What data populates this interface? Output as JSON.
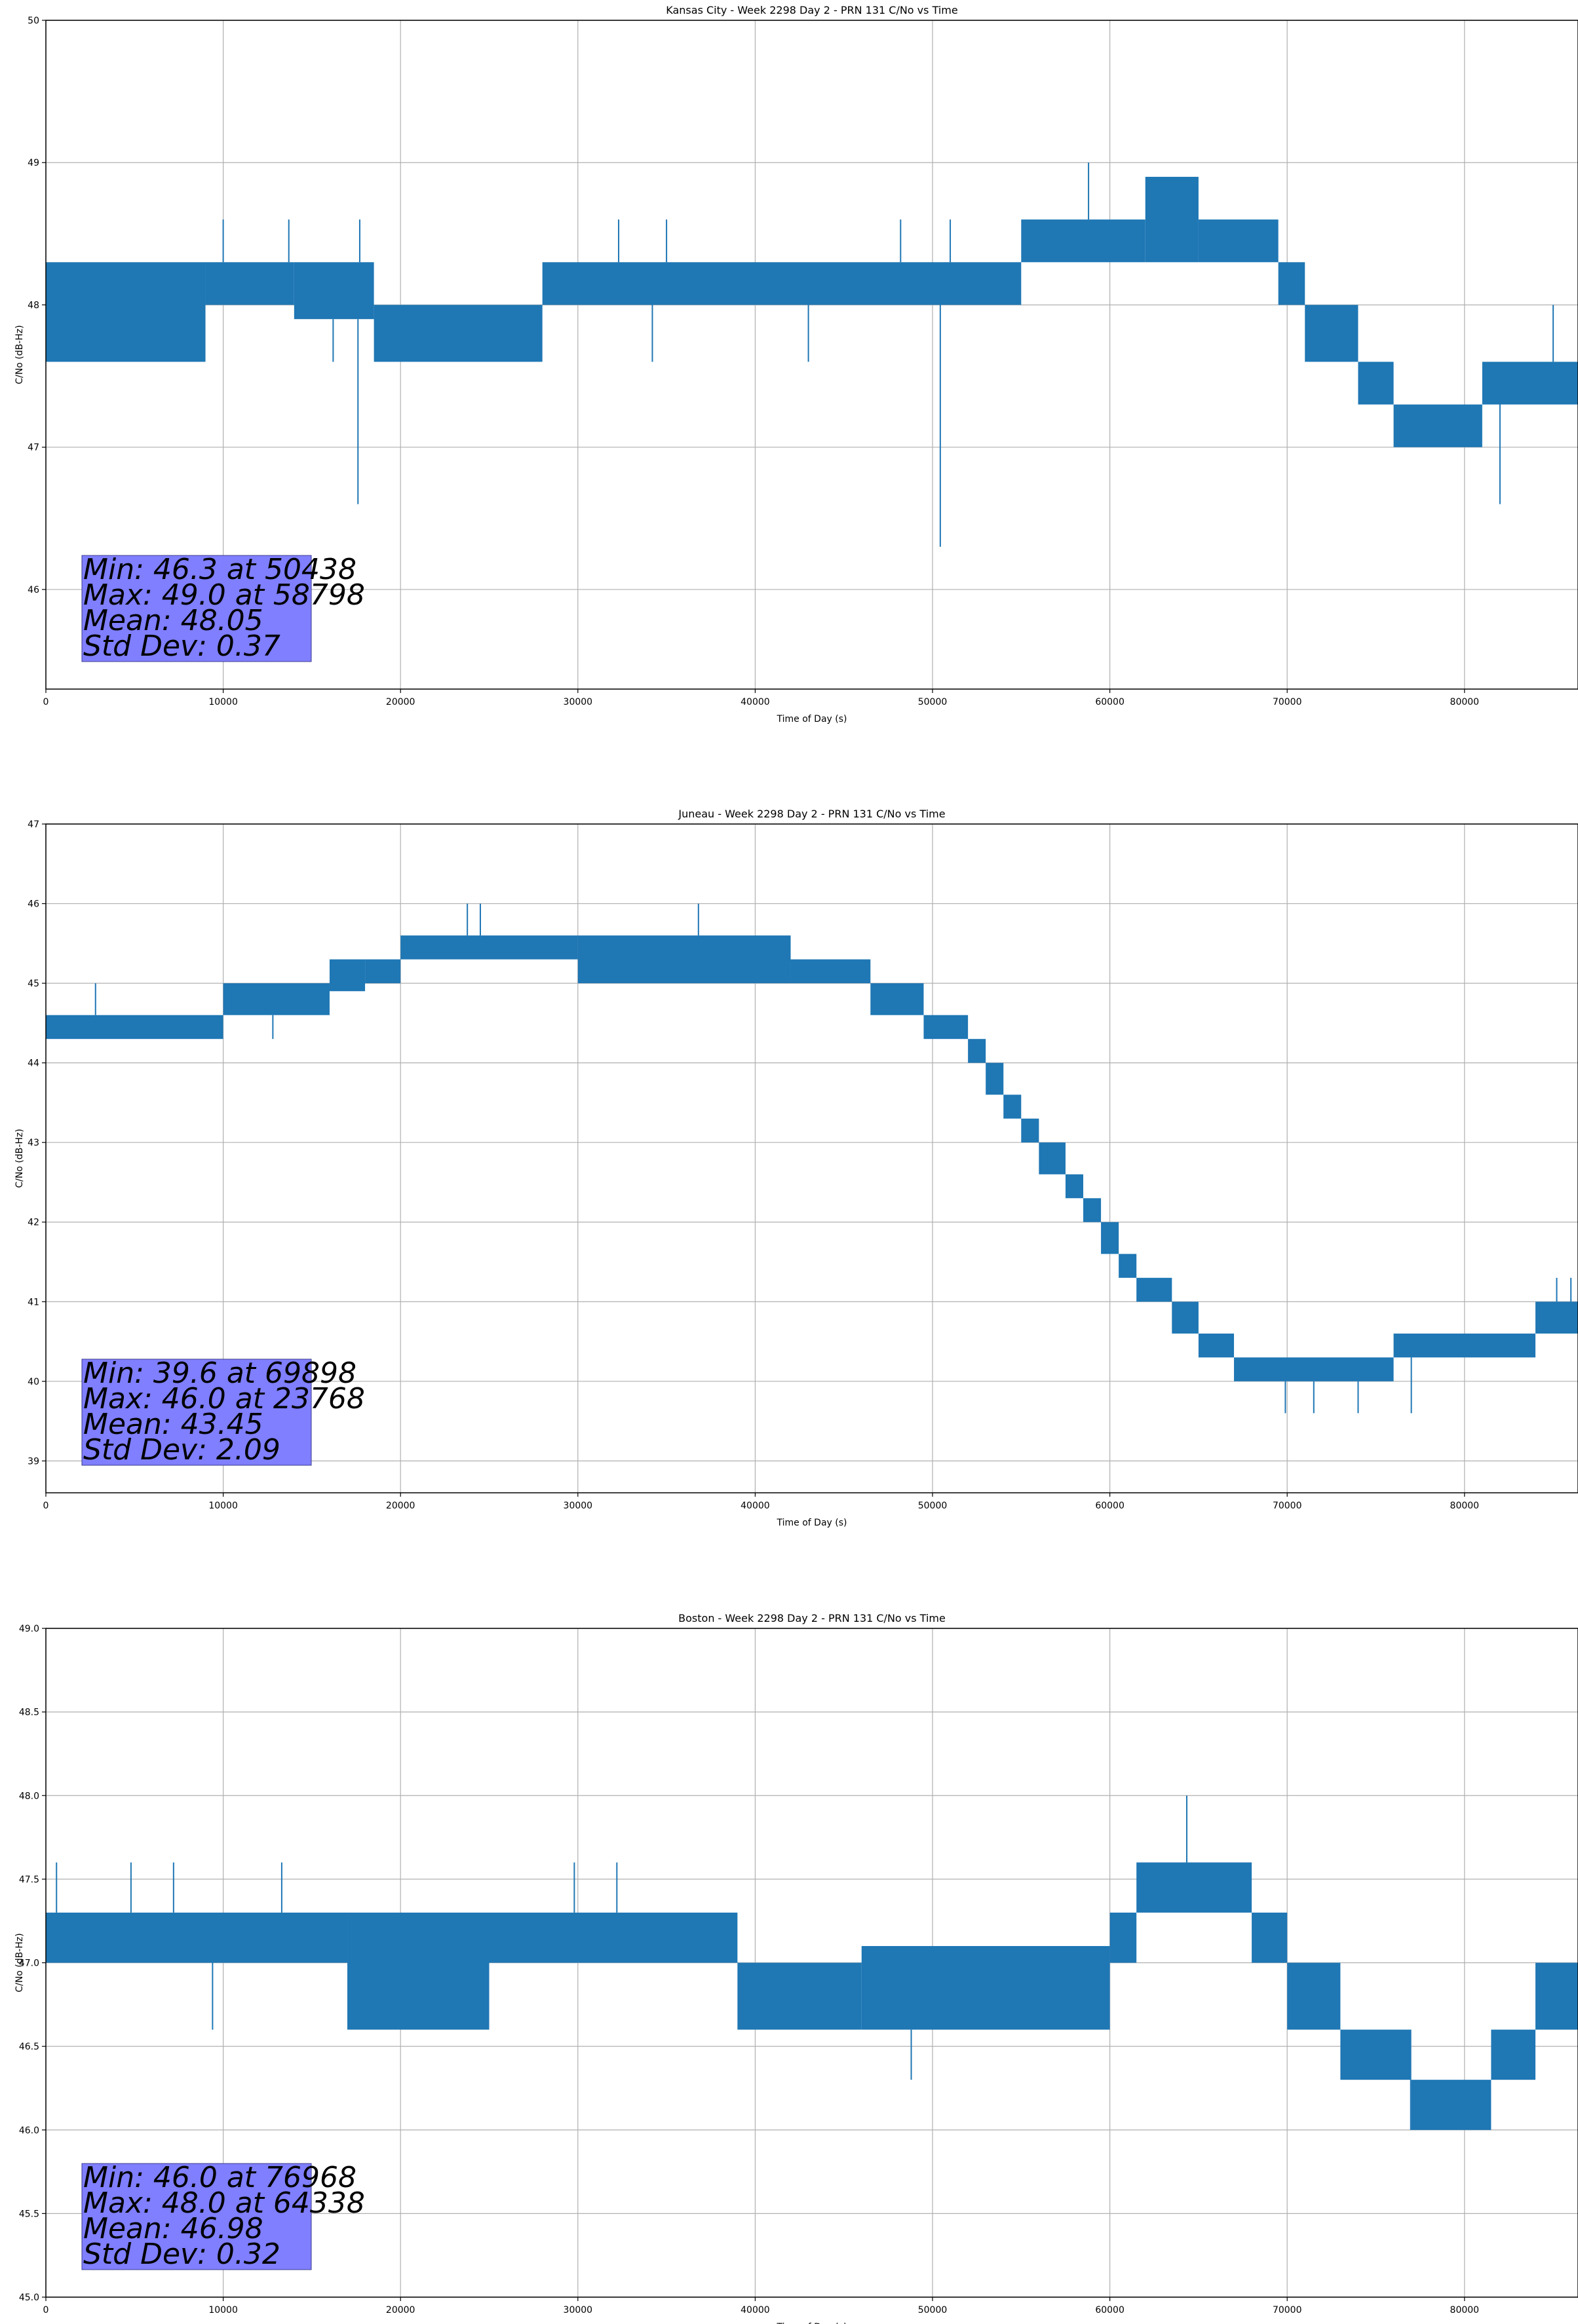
{
  "chart_data": [
    {
      "type": "line",
      "title": "Kansas City - Week 2298 Day 2 - PRN 131 C/No vs Time",
      "xlabel": "Time of Day (s)",
      "ylabel": "C/No (dB-Hz)",
      "xlim": [
        0,
        86400
      ],
      "ylim": [
        45.3,
        50
      ],
      "xticks": [
        0,
        10000,
        20000,
        30000,
        40000,
        50000,
        60000,
        70000,
        80000
      ],
      "yticks": [
        46,
        47,
        48,
        49,
        50
      ],
      "tick_decimals": 0,
      "grid": true,
      "color": "#1f77b4",
      "series": [
        {
          "segments": [
            {
              "x0": 0,
              "x1": 9000,
              "lo": 47.6,
              "hi": 48.3
            },
            {
              "x0": 9000,
              "x1": 14000,
              "lo": 48.0,
              "hi": 48.3
            },
            {
              "x0": 14000,
              "x1": 18500,
              "lo": 47.9,
              "hi": 48.3
            },
            {
              "x0": 18500,
              "x1": 28000,
              "lo": 47.6,
              "hi": 48.0
            },
            {
              "x0": 28000,
              "x1": 55000,
              "lo": 48.0,
              "hi": 48.3
            },
            {
              "x0": 55000,
              "x1": 62000,
              "lo": 48.3,
              "hi": 48.6
            },
            {
              "x0": 62000,
              "x1": 65000,
              "lo": 48.3,
              "hi": 48.9
            },
            {
              "x0": 65000,
              "x1": 69500,
              "lo": 48.3,
              "hi": 48.6
            },
            {
              "x0": 69500,
              "x1": 71000,
              "lo": 48.0,
              "hi": 48.3
            },
            {
              "x0": 71000,
              "x1": 74000,
              "lo": 47.6,
              "hi": 48.0
            },
            {
              "x0": 74000,
              "x1": 76000,
              "lo": 47.3,
              "hi": 47.6
            },
            {
              "x0": 76000,
              "x1": 81000,
              "lo": 47.0,
              "hi": 47.3
            },
            {
              "x0": 81000,
              "x1": 86400,
              "lo": 47.3,
              "hi": 47.6
            }
          ],
          "spikes": [
            {
              "x": 17600,
              "y": 46.6
            },
            {
              "x": 50438,
              "y": 46.3
            },
            {
              "x": 82000,
              "y": 46.6
            },
            {
              "x": 58798,
              "y": 49.0
            },
            {
              "x": 10000,
              "y": 48.6
            },
            {
              "x": 13700,
              "y": 48.6
            },
            {
              "x": 17700,
              "y": 48.6
            },
            {
              "x": 32300,
              "y": 48.6
            },
            {
              "x": 35000,
              "y": 48.6
            },
            {
              "x": 48200,
              "y": 48.6
            },
            {
              "x": 51000,
              "y": 48.6
            },
            {
              "x": 16200,
              "y": 47.6
            },
            {
              "x": 34200,
              "y": 47.6
            },
            {
              "x": 43000,
              "y": 47.6
            },
            {
              "x": 77500,
              "y": 47.0
            },
            {
              "x": 85000,
              "y": 48.0
            }
          ]
        }
      ],
      "stats": {
        "line1": "Min: 46.3 at 50438",
        "line2": "Max: 49.0 at 58798",
        "line3": "Mean: 48.05",
        "line4": "Std Dev: 0.37"
      }
    },
    {
      "type": "line",
      "title": "Juneau - Week 2298 Day 2 - PRN 131 C/No vs Time",
      "xlabel": "Time of Day (s)",
      "ylabel": "C/No (dB-Hz)",
      "xlim": [
        0,
        86400
      ],
      "ylim": [
        38.6,
        47
      ],
      "xticks": [
        0,
        10000,
        20000,
        30000,
        40000,
        50000,
        60000,
        70000,
        80000
      ],
      "yticks": [
        39,
        40,
        41,
        42,
        43,
        44,
        45,
        46,
        47
      ],
      "tick_decimals": 0,
      "grid": true,
      "color": "#1f77b4",
      "series": [
        {
          "segments": [
            {
              "x0": 0,
              "x1": 10000,
              "lo": 44.3,
              "hi": 44.6
            },
            {
              "x0": 10000,
              "x1": 16000,
              "lo": 44.6,
              "hi": 45.0
            },
            {
              "x0": 16000,
              "x1": 18000,
              "lo": 44.9,
              "hi": 45.3
            },
            {
              "x0": 18000,
              "x1": 20000,
              "lo": 45.0,
              "hi": 45.3
            },
            {
              "x0": 20000,
              "x1": 30000,
              "lo": 45.3,
              "hi": 45.6
            },
            {
              "x0": 30000,
              "x1": 42000,
              "lo": 45.0,
              "hi": 45.6
            },
            {
              "x0": 42000,
              "x1": 46500,
              "lo": 45.0,
              "hi": 45.3
            },
            {
              "x0": 46500,
              "x1": 49500,
              "lo": 44.6,
              "hi": 45.0
            },
            {
              "x0": 49500,
              "x1": 52000,
              "lo": 44.3,
              "hi": 44.6
            },
            {
              "x0": 52000,
              "x1": 53000,
              "lo": 44.0,
              "hi": 44.3
            },
            {
              "x0": 53000,
              "x1": 54000,
              "lo": 43.6,
              "hi": 44.0
            },
            {
              "x0": 54000,
              "x1": 55000,
              "lo": 43.3,
              "hi": 43.6
            },
            {
              "x0": 55000,
              "x1": 56000,
              "lo": 43.0,
              "hi": 43.3
            },
            {
              "x0": 56000,
              "x1": 57500,
              "lo": 42.6,
              "hi": 43.0
            },
            {
              "x0": 57500,
              "x1": 58500,
              "lo": 42.3,
              "hi": 42.6
            },
            {
              "x0": 58500,
              "x1": 59500,
              "lo": 42.0,
              "hi": 42.3
            },
            {
              "x0": 59500,
              "x1": 60500,
              "lo": 41.6,
              "hi": 42.0
            },
            {
              "x0": 60500,
              "x1": 61500,
              "lo": 41.3,
              "hi": 41.6
            },
            {
              "x0": 61500,
              "x1": 63500,
              "lo": 41.0,
              "hi": 41.3
            },
            {
              "x0": 63500,
              "x1": 65000,
              "lo": 40.6,
              "hi": 41.0
            },
            {
              "x0": 65000,
              "x1": 67000,
              "lo": 40.3,
              "hi": 40.6
            },
            {
              "x0": 67000,
              "x1": 76000,
              "lo": 40.0,
              "hi": 40.3
            },
            {
              "x0": 76000,
              "x1": 84000,
              "lo": 40.3,
              "hi": 40.6
            },
            {
              "x0": 84000,
              "x1": 86400,
              "lo": 40.6,
              "hi": 41.0
            }
          ],
          "spikes": [
            {
              "x": 23768,
              "y": 46.0
            },
            {
              "x": 24500,
              "y": 46.0
            },
            {
              "x": 36800,
              "y": 46.0
            },
            {
              "x": 69898,
              "y": 39.6
            },
            {
              "x": 71500,
              "y": 39.6
            },
            {
              "x": 74000,
              "y": 39.6
            },
            {
              "x": 77000,
              "y": 39.6
            },
            {
              "x": 2800,
              "y": 45.0
            },
            {
              "x": 12800,
              "y": 44.3
            },
            {
              "x": 85200,
              "y": 41.3
            },
            {
              "x": 86000,
              "y": 41.3
            }
          ]
        }
      ],
      "stats": {
        "line1": "Min: 39.6 at 69898",
        "line2": "Max: 46.0 at 23768",
        "line3": "Mean: 43.45",
        "line4": "Std Dev: 2.09"
      }
    },
    {
      "type": "line",
      "title": "Boston - Week 2298 Day 2 - PRN 131 C/No vs Time",
      "xlabel": "Time of Day (s)",
      "ylabel": "C/No (dB-Hz)",
      "xlim": [
        0,
        86400
      ],
      "ylim": [
        45.0,
        49.0
      ],
      "xticks": [
        0,
        10000,
        20000,
        30000,
        40000,
        50000,
        60000,
        70000,
        80000
      ],
      "yticks": [
        45.0,
        45.5,
        46.0,
        46.5,
        47.0,
        47.5,
        48.0,
        48.5,
        49.0
      ],
      "tick_decimals": 1,
      "grid": true,
      "color": "#1f77b4",
      "series": [
        {
          "segments": [
            {
              "x0": 0,
              "x1": 17000,
              "lo": 47.0,
              "hi": 47.3
            },
            {
              "x0": 17000,
              "x1": 25000,
              "lo": 46.6,
              "hi": 47.3
            },
            {
              "x0": 25000,
              "x1": 39000,
              "lo": 47.0,
              "hi": 47.3
            },
            {
              "x0": 39000,
              "x1": 46000,
              "lo": 46.6,
              "hi": 47.0
            },
            {
              "x0": 46000,
              "x1": 60000,
              "lo": 46.6,
              "hi": 47.1
            },
            {
              "x0": 60000,
              "x1": 61500,
              "lo": 47.0,
              "hi": 47.3
            },
            {
              "x0": 61500,
              "x1": 68000,
              "lo": 47.3,
              "hi": 47.6
            },
            {
              "x0": 68000,
              "x1": 70000,
              "lo": 47.0,
              "hi": 47.3
            },
            {
              "x0": 70000,
              "x1": 73000,
              "lo": 46.6,
              "hi": 47.0
            },
            {
              "x0": 73000,
              "x1": 77000,
              "lo": 46.3,
              "hi": 46.6
            },
            {
              "x0": 77000,
              "x1": 81500,
              "lo": 46.0,
              "hi": 46.3
            },
            {
              "x0": 81500,
              "x1": 84000,
              "lo": 46.3,
              "hi": 46.6
            },
            {
              "x0": 84000,
              "x1": 86400,
              "lo": 46.6,
              "hi": 47.0
            }
          ],
          "spikes": [
            {
              "x": 64338,
              "y": 48.0
            },
            {
              "x": 76968,
              "y": 46.0
            },
            {
              "x": 48800,
              "y": 46.3
            },
            {
              "x": 9400,
              "y": 46.6
            },
            {
              "x": 600,
              "y": 47.6
            },
            {
              "x": 4800,
              "y": 47.6
            },
            {
              "x": 7200,
              "y": 47.6
            },
            {
              "x": 13300,
              "y": 47.6
            },
            {
              "x": 29800,
              "y": 47.6
            },
            {
              "x": 32200,
              "y": 47.6
            }
          ]
        }
      ],
      "stats": {
        "line1": "Min: 46.0 at 76968",
        "line2": "Max: 48.0 at 64338",
        "line3": "Mean: 46.98",
        "line4": "Std Dev: 0.32"
      }
    }
  ]
}
